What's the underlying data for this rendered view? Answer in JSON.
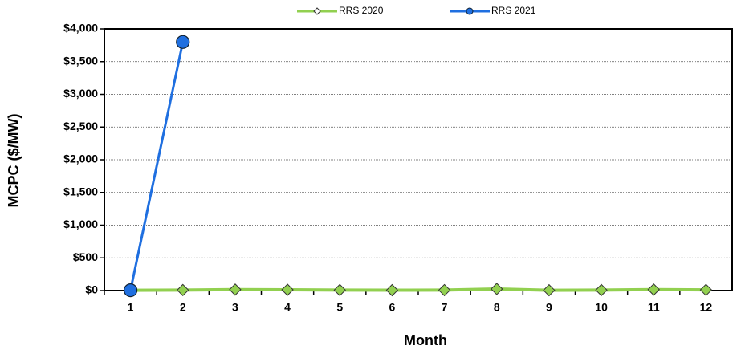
{
  "chart_data": {
    "type": "line",
    "y_label": "MCPC ($/MW)",
    "x_label": "Month",
    "categories": [
      "1",
      "2",
      "3",
      "4",
      "5",
      "6",
      "7",
      "8",
      "9",
      "10",
      "11",
      "12"
    ],
    "series": [
      {
        "name": "RRS 2020",
        "color": "#92d050",
        "values": [
          5,
          8,
          15,
          12,
          8,
          6,
          7,
          25,
          5,
          8,
          15,
          10
        ]
      },
      {
        "name": "RRS 2021",
        "color": "#1f6fe0",
        "values": [
          5,
          3800,
          null,
          null,
          null,
          null,
          null,
          null,
          null,
          null,
          null,
          null
        ]
      }
    ],
    "ylim": [
      0,
      4000
    ],
    "yticks": [
      {
        "value": 0,
        "label": "$0"
      },
      {
        "value": 500,
        "label": "$500"
      },
      {
        "value": 1000,
        "label": "$1,000"
      },
      {
        "value": 1500,
        "label": "$1,500"
      },
      {
        "value": 2000,
        "label": "$2,000"
      },
      {
        "value": 2500,
        "label": "$2,500"
      },
      {
        "value": 3000,
        "label": "$3,000"
      },
      {
        "value": 3500,
        "label": "$3,500"
      },
      {
        "value": 4000,
        "label": "$4,000"
      }
    ],
    "grid": true
  }
}
